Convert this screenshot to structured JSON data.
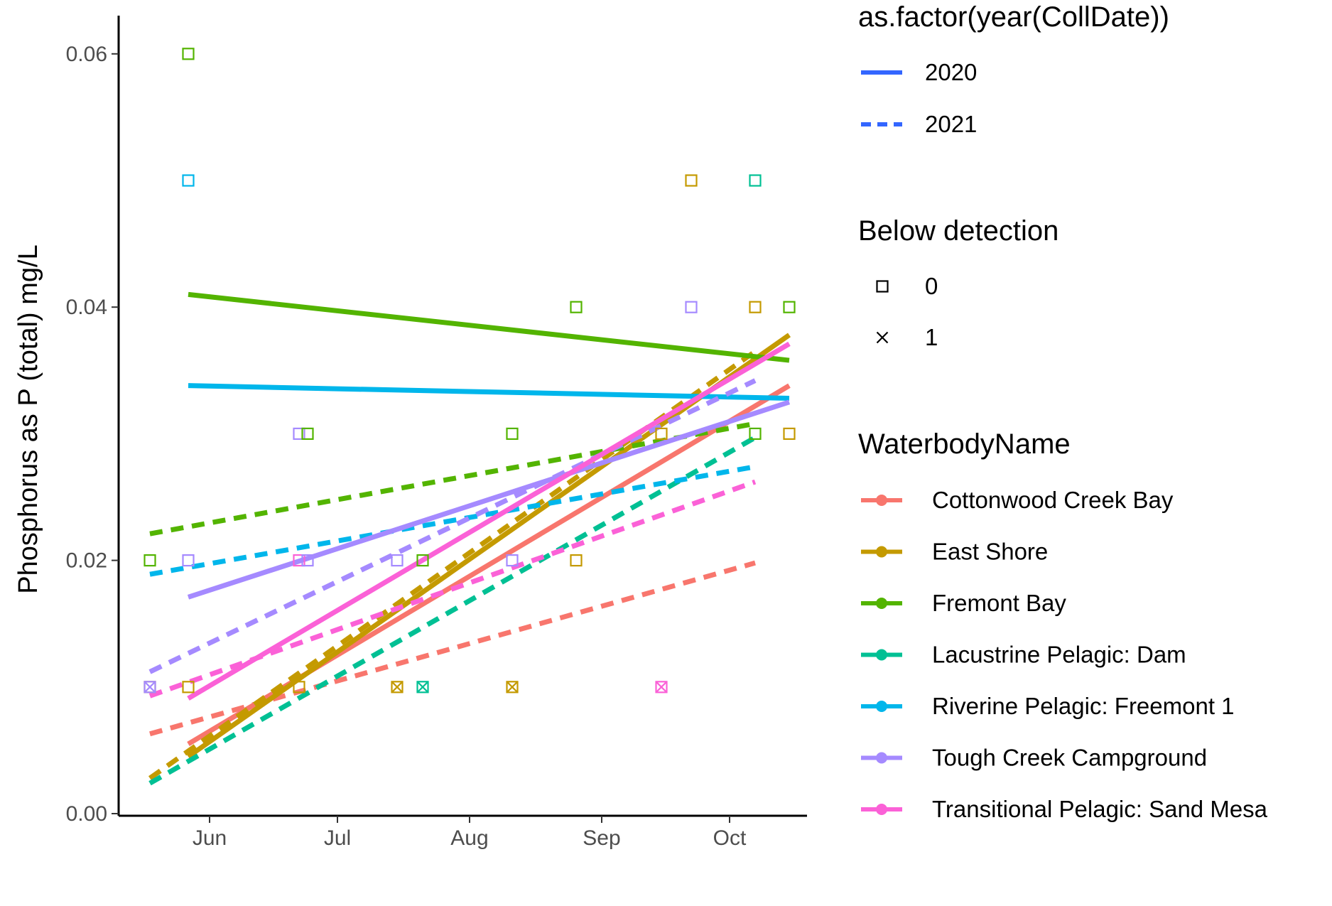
{
  "chart_data": {
    "type": "scatter",
    "xlabel": "",
    "ylabel": "Phosphorus as P (total) mg/L",
    "ylim": [
      0,
      0.063
    ],
    "xlim": [
      "2020-05-10",
      "2020-10-20"
    ],
    "y_ticks": [
      "0.00",
      "0.02",
      "0.04",
      "0.06"
    ],
    "y_tick_values": [
      0,
      0.02,
      0.04,
      0.06
    ],
    "x_ticks": [
      "Jun",
      "Jul",
      "Aug",
      "Sep",
      "Oct"
    ],
    "x_tick_dates": [
      "2020-06-01",
      "2020-07-01",
      "2020-08-01",
      "2020-09-01",
      "2020-10-01"
    ],
    "grid": false,
    "legend_position": "right",
    "legends": {
      "linetype": {
        "title": "as.factor(year(CollDate))",
        "entries": [
          {
            "label": "2020",
            "dash": "solid"
          },
          {
            "label": "2021",
            "dash": "dashed"
          }
        ]
      },
      "shape": {
        "title": "Below detection",
        "entries": [
          {
            "label": "0",
            "shape": "open-square"
          },
          {
            "label": "1",
            "shape": "cross"
          }
        ]
      },
      "color": {
        "title": "WaterbodyName",
        "entries": [
          {
            "label": "Cottonwood Creek Bay",
            "color": "#F8766D"
          },
          {
            "label": "East Shore",
            "color": "#C49A00"
          },
          {
            "label": "Fremont Bay",
            "color": "#53B400"
          },
          {
            "label": "Lacustrine Pelagic: Dam",
            "color": "#00C094"
          },
          {
            "label": "Riverine Pelagic: Freemont 1",
            "color": "#00B6EB"
          },
          {
            "label": "Tough Creek Campground",
            "color": "#A58AFF"
          },
          {
            "label": "Transitional Pelagic: Sand Mesa",
            "color": "#FB61D7"
          }
        ]
      }
    },
    "series": [
      {
        "name": "Cottonwood Creek Bay",
        "color": "#F8766D",
        "fits": [
          {
            "year": "2020",
            "x": [
              "2020-05-27",
              "2020-10-15"
            ],
            "y": [
              0.0055,
              0.0338
            ]
          },
          {
            "year": "2021",
            "x": [
              "2020-05-18",
              "2020-10-07"
            ],
            "y": [
              0.0063,
              0.0198
            ]
          }
        ]
      },
      {
        "name": "East Shore",
        "color": "#C49A00",
        "fits": [
          {
            "year": "2020",
            "x": [
              "2020-05-27",
              "2020-10-15"
            ],
            "y": [
              0.0045,
              0.0378
            ]
          },
          {
            "year": "2021",
            "x": [
              "2020-05-18",
              "2020-10-07"
            ],
            "y": [
              0.0028,
              0.0365
            ]
          }
        ]
      },
      {
        "name": "Fremont Bay",
        "color": "#53B400",
        "fits": [
          {
            "year": "2020",
            "x": [
              "2020-05-27",
              "2020-10-15"
            ],
            "y": [
              0.041,
              0.0358
            ]
          },
          {
            "year": "2021",
            "x": [
              "2020-05-18",
              "2020-10-07"
            ],
            "y": [
              0.0221,
              0.0308
            ]
          }
        ]
      },
      {
        "name": "Lacustrine Pelagic: Dam",
        "color": "#00C094",
        "fits": [
          {
            "year": "2021",
            "x": [
              "2020-05-18",
              "2020-10-07"
            ],
            "y": [
              0.0024,
              0.0297
            ]
          }
        ]
      },
      {
        "name": "Riverine Pelagic: Freemont 1",
        "color": "#00B6EB",
        "fits": [
          {
            "year": "2020",
            "x": [
              "2020-05-27",
              "2020-10-15"
            ],
            "y": [
              0.0338,
              0.0328
            ]
          },
          {
            "year": "2021",
            "x": [
              "2020-05-18",
              "2020-10-07"
            ],
            "y": [
              0.0189,
              0.0274
            ]
          }
        ]
      },
      {
        "name": "Tough Creek Campground",
        "color": "#A58AFF",
        "fits": [
          {
            "year": "2020",
            "x": [
              "2020-05-27",
              "2020-10-15"
            ],
            "y": [
              0.0171,
              0.0325
            ]
          },
          {
            "year": "2021",
            "x": [
              "2020-05-18",
              "2020-10-07"
            ],
            "y": [
              0.0112,
              0.0342
            ]
          }
        ]
      },
      {
        "name": "Transitional Pelagic: Sand Mesa",
        "color": "#FB61D7",
        "fits": [
          {
            "year": "2020",
            "x": [
              "2020-05-27",
              "2020-10-15"
            ],
            "y": [
              0.0091,
              0.0371
            ]
          },
          {
            "year": "2021",
            "x": [
              "2020-05-18",
              "2020-10-07"
            ],
            "y": [
              0.0093,
              0.0262
            ]
          }
        ]
      }
    ],
    "points": [
      {
        "series": "Fremont Bay",
        "x": "2020-05-27",
        "y": 0.06,
        "below_detection": 0
      },
      {
        "series": "Riverine Pelagic: Freemont 1",
        "x": "2020-05-27",
        "y": 0.05,
        "below_detection": 0
      },
      {
        "series": "Fremont Bay",
        "x": "2020-05-18",
        "y": 0.02,
        "below_detection": 0
      },
      {
        "series": "Tough Creek Campground",
        "x": "2020-05-27",
        "y": 0.02,
        "below_detection": 0
      },
      {
        "series": "East Shore",
        "x": "2020-05-18",
        "y": 0.01,
        "below_detection": 0
      },
      {
        "series": "Tough Creek Campground",
        "x": "2020-05-18",
        "y": 0.01,
        "below_detection": 1
      },
      {
        "series": "East Shore",
        "x": "2020-05-27",
        "y": 0.01,
        "below_detection": 0
      },
      {
        "series": "Tough Creek Campground",
        "x": "2020-06-22",
        "y": 0.03,
        "below_detection": 0
      },
      {
        "series": "Fremont Bay",
        "x": "2020-06-24",
        "y": 0.03,
        "below_detection": 0
      },
      {
        "series": "Transitional Pelagic: Sand Mesa",
        "x": "2020-06-22",
        "y": 0.02,
        "below_detection": 0
      },
      {
        "series": "Tough Creek Campground",
        "x": "2020-06-24",
        "y": 0.02,
        "below_detection": 0
      },
      {
        "series": "East Shore",
        "x": "2020-06-22",
        "y": 0.01,
        "below_detection": 0
      },
      {
        "series": "Tough Creek Campground",
        "x": "2020-07-15",
        "y": 0.02,
        "below_detection": 0
      },
      {
        "series": "Fremont Bay",
        "x": "2020-07-21",
        "y": 0.02,
        "below_detection": 0
      },
      {
        "series": "East Shore",
        "x": "2020-07-15",
        "y": 0.01,
        "below_detection": 1
      },
      {
        "series": "Lacustrine Pelagic: Dam",
        "x": "2020-07-21",
        "y": 0.01,
        "below_detection": 1
      },
      {
        "series": "Fremont Bay",
        "x": "2020-08-11",
        "y": 0.03,
        "below_detection": 0
      },
      {
        "series": "Tough Creek Campground",
        "x": "2020-08-11",
        "y": 0.02,
        "below_detection": 0
      },
      {
        "series": "East Shore",
        "x": "2020-08-11",
        "y": 0.01,
        "below_detection": 1
      },
      {
        "series": "Fremont Bay",
        "x": "2020-08-26",
        "y": 0.04,
        "below_detection": 0
      },
      {
        "series": "East Shore",
        "x": "2020-08-26",
        "y": 0.02,
        "below_detection": 0
      },
      {
        "series": "East Shore",
        "x": "2020-09-15",
        "y": 0.03,
        "below_detection": 0
      },
      {
        "series": "Transitional Pelagic: Sand Mesa",
        "x": "2020-09-15",
        "y": 0.01,
        "below_detection": 1
      },
      {
        "series": "East Shore",
        "x": "2020-09-22",
        "y": 0.05,
        "below_detection": 0
      },
      {
        "series": "Tough Creek Campground",
        "x": "2020-09-22",
        "y": 0.04,
        "below_detection": 0
      },
      {
        "series": "Lacustrine Pelagic: Dam",
        "x": "2020-10-07",
        "y": 0.05,
        "below_detection": 0
      },
      {
        "series": "East Shore",
        "x": "2020-10-07",
        "y": 0.04,
        "below_detection": 0
      },
      {
        "series": "Fremont Bay",
        "x": "2020-10-07",
        "y": 0.03,
        "below_detection": 0
      },
      {
        "series": "Fremont Bay",
        "x": "2020-10-15",
        "y": 0.04,
        "below_detection": 0
      },
      {
        "series": "East Shore",
        "x": "2020-10-15",
        "y": 0.03,
        "below_detection": 0
      }
    ]
  }
}
